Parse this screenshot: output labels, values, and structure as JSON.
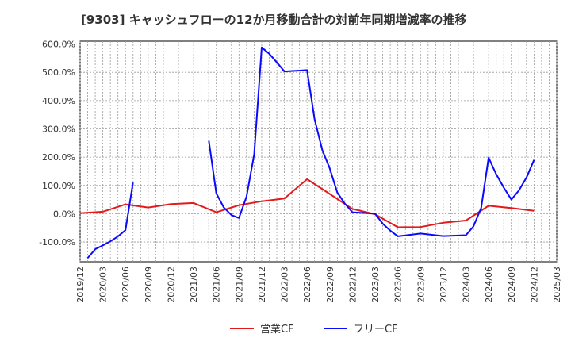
{
  "chart_data": {
    "type": "line",
    "title": "[9303]  キャッシュフローの12か月移動合計の対前年同期増減率の推移",
    "xlabel": "",
    "ylabel": "",
    "ylim": [
      -170,
      610
    ],
    "y_ticks": [
      600,
      500,
      400,
      300,
      200,
      100,
      0,
      -100
    ],
    "y_tick_labels": [
      "600.0%",
      "500.0%",
      "400.0%",
      "300.0%",
      "200.0%",
      "100.0%",
      "0.0%",
      "-100.0%"
    ],
    "x_tick_labels": [
      "2019/12",
      "2020/03",
      "2020/06",
      "2020/09",
      "2020/12",
      "2021/03",
      "2021/06",
      "2021/09",
      "2021/12",
      "2022/03",
      "2022/06",
      "2022/09",
      "2022/12",
      "2023/03",
      "2023/06",
      "2023/09",
      "2023/12",
      "2024/03",
      "2024/06",
      "2024/09",
      "2024/12",
      "2025/03"
    ],
    "grid": true,
    "legend_position": "bottom-center",
    "series": [
      {
        "name": "営業CF",
        "color": "#e31a1c",
        "points": [
          [
            0,
            2
          ],
          [
            1,
            7
          ],
          [
            2,
            33
          ],
          [
            3,
            22
          ],
          [
            4,
            34
          ],
          [
            5,
            38
          ],
          [
            6,
            5
          ],
          [
            7,
            30
          ],
          [
            8,
            44
          ],
          [
            9,
            54
          ],
          [
            10,
            122
          ],
          [
            11,
            70
          ],
          [
            12,
            17
          ],
          [
            13,
            -2
          ],
          [
            14,
            -48
          ],
          [
            15,
            -47
          ],
          [
            16,
            -32
          ],
          [
            17,
            -24
          ],
          [
            18,
            28
          ],
          [
            19,
            20
          ],
          [
            20,
            10
          ]
        ]
      },
      {
        "name": "フリーCF",
        "color": "#0a0aff",
        "segments": [
          [
            [
              0.33,
              -157
            ],
            [
              0.67,
              -125
            ],
            [
              1,
              -112
            ],
            [
              1.33,
              -98
            ],
            [
              1.67,
              -80
            ],
            [
              2,
              -58
            ],
            [
              2.33,
              110
            ]
          ],
          [
            [
              5.67,
              258
            ],
            [
              6,
              72
            ],
            [
              6.33,
              22
            ],
            [
              6.67,
              -5
            ],
            [
              7,
              -15
            ],
            [
              7.33,
              60
            ],
            [
              7.67,
              210
            ],
            [
              8,
              588
            ],
            [
              8.33,
              566
            ],
            [
              8.67,
              535
            ],
            [
              9,
              503
            ],
            [
              10,
              508
            ],
            [
              10.33,
              335
            ],
            [
              10.67,
              225
            ],
            [
              11,
              160
            ],
            [
              11.33,
              75
            ],
            [
              11.67,
              35
            ],
            [
              12,
              5
            ],
            [
              13,
              0
            ],
            [
              13.33,
              -35
            ],
            [
              13.67,
              -60
            ],
            [
              14,
              -80
            ],
            [
              15,
              -70
            ],
            [
              16,
              -79
            ],
            [
              17,
              -76
            ],
            [
              17.33,
              -45
            ],
            [
              17.67,
              20
            ],
            [
              18,
              198
            ],
            [
              18.33,
              140
            ],
            [
              18.67,
              92
            ],
            [
              19,
              50
            ],
            [
              19.33,
              82
            ],
            [
              19.67,
              128
            ],
            [
              20,
              190
            ]
          ]
        ]
      }
    ]
  }
}
